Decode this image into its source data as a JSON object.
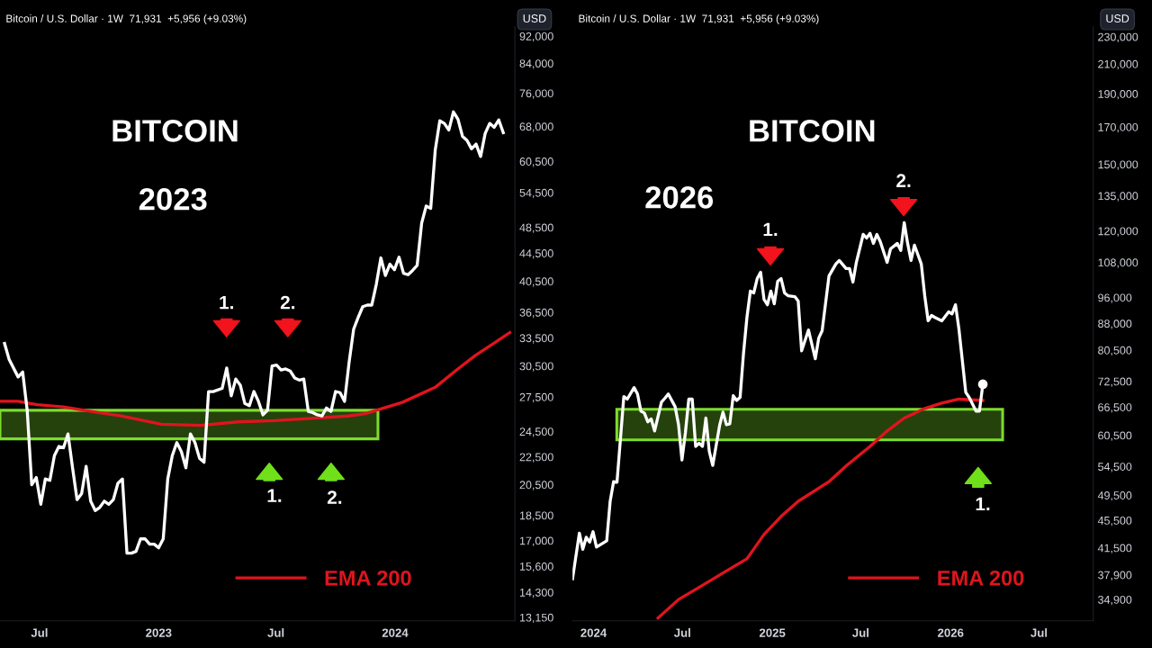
{
  "chart_data": [
    {
      "type": "line",
      "title": "BITCOIN",
      "subtitle": "2023",
      "annotations": [
        "Bitcoin / U.S. Dollar · 1W  71,931  +5,956 (+9.03%)",
        "USD",
        "1.",
        "2.",
        "1.",
        "2."
      ],
      "series": [
        {
          "color": "#ffffff",
          "x": [
            "2022-05-08",
            "2022-05-15",
            "2022-05-29",
            "2022-06-05",
            "2022-06-12",
            "2022-06-19",
            "2022-06-26",
            "2022-07-03",
            "2022-07-10",
            "2022-07-17",
            "2022-07-24",
            "2022-07-31",
            "2022-08-07",
            "2022-08-14",
            "2022-08-21",
            "2022-08-28",
            "2022-09-04",
            "2022-09-11",
            "2022-09-18",
            "2022-09-25",
            "2022-10-02",
            "2022-10-09",
            "2022-10-16",
            "2022-10-23",
            "2022-10-30",
            "2022-11-06",
            "2022-11-13",
            "2022-11-20",
            "2022-11-27",
            "2022-12-04",
            "2022-12-11",
            "2022-12-18",
            "2022-12-25",
            "2023-01-01",
            "2023-01-08",
            "2023-01-15",
            "2023-01-22",
            "2023-01-29",
            "2023-02-05",
            "2023-02-12",
            "2023-02-19",
            "2023-02-26",
            "2023-03-05",
            "2023-03-12",
            "2023-03-19",
            "2023-03-26",
            "2023-04-09",
            "2023-04-16",
            "2023-04-23",
            "2023-04-30",
            "2023-05-07",
            "2023-05-14",
            "2023-05-21",
            "2023-05-28",
            "2023-06-04",
            "2023-06-11",
            "2023-06-18",
            "2023-06-25",
            "2023-07-02",
            "2023-07-09",
            "2023-07-16",
            "2023-07-23",
            "2023-07-30",
            "2023-08-06",
            "2023-08-13",
            "2023-08-20",
            "2023-08-27",
            "2023-09-03",
            "2023-09-10",
            "2023-09-17",
            "2023-09-24",
            "2023-10-01",
            "2023-10-08",
            "2023-10-15",
            "2023-10-22",
            "2023-10-29",
            "2023-11-05",
            "2023-11-12",
            "2023-11-19",
            "2023-11-26",
            "2023-12-03",
            "2023-12-10",
            "2023-12-17",
            "2023-12-24",
            "2023-12-31",
            "2024-01-07",
            "2024-01-14",
            "2024-01-21",
            "2024-01-28",
            "2024-02-04",
            "2024-02-11",
            "2024-02-18",
            "2024-02-25",
            "2024-03-03",
            "2024-03-10",
            "2024-03-17",
            "2024-03-24",
            "2024-03-31",
            "2024-04-07",
            "2024-04-14",
            "2024-04-21",
            "2024-04-28",
            "2024-05-05",
            "2024-05-12",
            "2024-05-19",
            "2024-05-26",
            "2024-06-02",
            "2024-06-09",
            "2024-06-16"
          ],
          "values": [
            32900,
            31200,
            29400,
            29900,
            26300,
            20500,
            21000,
            19200,
            20900,
            20800,
            22600,
            23300,
            23200,
            24300,
            21700,
            19500,
            19900,
            21800,
            19400,
            18800,
            19000,
            19400,
            19200,
            19500,
            20600,
            20900,
            16300,
            16300,
            16400,
            17100,
            17100,
            16800,
            16800,
            16600,
            17100,
            20900,
            22600,
            23600,
            22900,
            21700,
            24300,
            23600,
            22400,
            22100,
            28000,
            28000,
            28300,
            30300,
            27600,
            29200,
            28600,
            26900,
            26700,
            28000,
            27100,
            25900,
            26300,
            30500,
            30600,
            30100,
            30200,
            30000,
            29300,
            29100,
            29200,
            26200,
            26100,
            25900,
            25800,
            26500,
            26200,
            28000,
            27900,
            27100,
            30900,
            34500,
            35900,
            37200,
            37400,
            37400,
            40100,
            43800,
            41300,
            42900,
            42100,
            43900,
            41600,
            41400,
            42000,
            42700,
            49200,
            52100,
            51700,
            62900,
            69300,
            68700,
            67200,
            71400,
            69700,
            65800,
            64900,
            63100,
            64100,
            61500,
            66400,
            68700,
            67800,
            69500,
            66600
          ]
        },
        {
          "name": "EMA 200",
          "color": "#e0141e",
          "x": [
            "2022-05-01",
            "2022-05-29",
            "2022-06-27",
            "2022-08-07",
            "2022-09-19",
            "2022-11-04",
            "2023-01-05",
            "2023-03-07",
            "2023-05-03",
            "2023-06-28",
            "2023-08-24",
            "2023-10-20",
            "2023-11-16",
            "2023-12-03",
            "2024-01-12",
            "2024-03-03",
            "2024-04-05",
            "2024-05-04",
            "2024-06-01",
            "2024-06-26"
          ],
          "values": [
            27100,
            27100,
            26800,
            26600,
            26200,
            25800,
            25100,
            25000,
            25300,
            25400,
            25600,
            25800,
            26000,
            26300,
            27000,
            28400,
            30100,
            31600,
            32900,
            34100
          ]
        }
      ],
      "bands": [
        {
          "axis": "y",
          "from": 23900,
          "to": 26300,
          "color": "#7cdc2c"
        }
      ],
      "log": "y",
      "grid": false,
      "legend": "bottom",
      "line_style": "solid",
      "xlim": [
        "2022-05-01",
        "2024-07-04"
      ],
      "xticks": [
        {
          "value": "2022-07-01",
          "label": "Jul"
        },
        {
          "value": "2023-01-01",
          "label": "2023"
        },
        {
          "value": "2023-07-01",
          "label": "Jul"
        },
        {
          "value": "2024-01-01",
          "label": "2024"
        }
      ],
      "ylim": [
        13000,
        95000
      ],
      "yticks": [
        {
          "value": 13150,
          "label": "13,150"
        },
        {
          "value": 14300,
          "label": "14,300"
        },
        {
          "value": 15600,
          "label": "15,600"
        },
        {
          "value": 17000,
          "label": "17,000"
        },
        {
          "value": 18500,
          "label": "18,500"
        },
        {
          "value": 20500,
          "label": "20,500"
        },
        {
          "value": 22500,
          "label": "22,500"
        },
        {
          "value": 24500,
          "label": "24,500"
        },
        {
          "value": 27500,
          "label": "27,500"
        },
        {
          "value": 30500,
          "label": "30,500"
        },
        {
          "value": 33500,
          "label": "33,500"
        },
        {
          "value": 36500,
          "label": "36,500"
        },
        {
          "value": 40500,
          "label": "40,500"
        },
        {
          "value": 44500,
          "label": "44,500"
        },
        {
          "value": 48500,
          "label": "48,500"
        },
        {
          "value": 54500,
          "label": "54,500"
        },
        {
          "value": 60500,
          "label": "60,500"
        },
        {
          "value": 68000,
          "label": "68,000"
        },
        {
          "value": 76000,
          "label": "76,000"
        },
        {
          "value": 84000,
          "label": "84,000"
        },
        {
          "value": 92000,
          "label": "92,000"
        }
      ]
    },
    {
      "type": "line",
      "title": "BITCOIN",
      "subtitle": "2026",
      "annotations": [
        "Bitcoin / U.S. Dollar · 1W  71,931  +5,956 (+9.03%)",
        "USD",
        "1.",
        "2.",
        "1."
      ],
      "series": [
        {
          "type": "scatter",
          "color": "#ffffff",
          "x": [
            "2026-03-08"
          ],
          "values": [
            71800
          ]
        },
        {
          "color": "#ffffff",
          "x": [
            "2023-11-19",
            "2023-12-03",
            "2023-12-10",
            "2023-12-17",
            "2023-12-24",
            "2023-12-31",
            "2024-01-07",
            "2024-01-28",
            "2024-02-04",
            "2024-02-11",
            "2024-02-18",
            "2024-03-03",
            "2024-03-10",
            "2024-03-24",
            "2024-03-31",
            "2024-04-07",
            "2024-04-14",
            "2024-04-21",
            "2024-04-28",
            "2024-05-05",
            "2024-05-19",
            "2024-05-26",
            "2024-06-02",
            "2024-06-16",
            "2024-06-23",
            "2024-06-30",
            "2024-07-07",
            "2024-07-14",
            "2024-07-21",
            "2024-07-28",
            "2024-08-04",
            "2024-08-11",
            "2024-08-18",
            "2024-08-25",
            "2024-09-01",
            "2024-09-15",
            "2024-09-22",
            "2024-09-29",
            "2024-10-06",
            "2024-10-13",
            "2024-10-20",
            "2024-10-27",
            "2024-11-03",
            "2024-11-10",
            "2024-11-17",
            "2024-11-24",
            "2024-12-01",
            "2024-12-08",
            "2024-12-15",
            "2024-12-22",
            "2024-12-29",
            "2025-01-05",
            "2025-01-12",
            "2025-01-19",
            "2025-01-26",
            "2025-02-02",
            "2025-02-16",
            "2025-02-23",
            "2025-03-02",
            "2025-03-16",
            "2025-03-30",
            "2025-04-06",
            "2025-04-13",
            "2025-04-27",
            "2025-05-11",
            "2025-05-18",
            "2025-06-01",
            "2025-06-08",
            "2025-06-15",
            "2025-06-22",
            "2025-07-06",
            "2025-07-13",
            "2025-07-20",
            "2025-07-27",
            "2025-08-03",
            "2025-08-10",
            "2025-08-24",
            "2025-08-31",
            "2025-09-14",
            "2025-09-21",
            "2025-09-28",
            "2025-10-05",
            "2025-10-12",
            "2025-10-19",
            "2025-11-02",
            "2025-11-09",
            "2025-11-16",
            "2025-11-23",
            "2025-11-30",
            "2025-12-14",
            "2025-12-28",
            "2026-01-04",
            "2026-01-11",
            "2026-01-18",
            "2026-02-01",
            "2026-02-08",
            "2026-02-22",
            "2026-03-01",
            "2026-03-08"
          ],
          "values": [
            37400,
            43600,
            41300,
            43000,
            42300,
            43800,
            41600,
            42500,
            48500,
            51800,
            51700,
            68900,
            68300,
            71000,
            69500,
            65600,
            65200,
            63300,
            63900,
            61400,
            67600,
            68500,
            69500,
            66600,
            62700,
            55700,
            61000,
            68300,
            68300,
            58300,
            58900,
            58300,
            64100,
            57300,
            54700,
            62500,
            65400,
            62700,
            62900,
            69100,
            68000,
            68700,
            79600,
            89800,
            98100,
            97500,
            102300,
            104500,
            95400,
            93700,
            98100,
            94000,
            101400,
            102300,
            97500,
            96600,
            96300,
            94900,
            80300,
            86100,
            78200,
            83800,
            85900,
            103200,
            107400,
            108700,
            105800,
            105800,
            101100,
            108000,
            118600,
            117200,
            119000,
            115100,
            118600,
            115800,
            108000,
            113000,
            115100,
            112400,
            123400,
            115100,
            108700,
            114400,
            107400,
            96600,
            88800,
            90400,
            89800,
            88800,
            91500,
            90900,
            93700,
            86400,
            69900,
            68700,
            65600,
            65600,
            71800
          ]
        },
        {
          "name": "EMA 200",
          "color": "#e0141e",
          "x": [
            "2024-05-12",
            "2024-06-23",
            "2024-08-11",
            "2024-09-29",
            "2024-11-10",
            "2024-12-15",
            "2025-01-19",
            "2025-02-23",
            "2025-04-27",
            "2025-06-01",
            "2025-07-20",
            "2025-08-24",
            "2025-09-28",
            "2025-11-09",
            "2025-12-14",
            "2026-01-18",
            "2026-03-08"
          ],
          "values": [
            32800,
            34900,
            36600,
            38400,
            40000,
            43400,
            46100,
            48500,
            51800,
            54600,
            58300,
            61400,
            64100,
            66200,
            67400,
            68300,
            68000
          ]
        }
      ],
      "bands": [
        {
          "axis": "y",
          "from": 59600,
          "to": 66000,
          "color": "#7cdc2c"
        }
      ],
      "log": "y",
      "grid": false,
      "legend": "bottom",
      "line_style": "solid",
      "xlim": [
        "2023-11-19",
        "2026-10-20"
      ],
      "xticks": [
        {
          "value": "2024-01-01",
          "label": "2024"
        },
        {
          "value": "2024-07-01",
          "label": "Jul"
        },
        {
          "value": "2025-01-01",
          "label": "2025"
        },
        {
          "value": "2025-07-01",
          "label": "Jul"
        },
        {
          "value": "2026-01-01",
          "label": "2026"
        },
        {
          "value": "2026-07-01",
          "label": "Jul"
        }
      ],
      "ylim": [
        32500,
        238000
      ],
      "yticks": [
        {
          "value": 34900,
          "label": "34,900"
        },
        {
          "value": 37900,
          "label": "37,900"
        },
        {
          "value": 41500,
          "label": "41,500"
        },
        {
          "value": 45500,
          "label": "45,500"
        },
        {
          "value": 49500,
          "label": "49,500"
        },
        {
          "value": 54500,
          "label": "54,500"
        },
        {
          "value": 60500,
          "label": "60,500"
        },
        {
          "value": 66500,
          "label": "66,500"
        },
        {
          "value": 72500,
          "label": "72,500"
        },
        {
          "value": 80500,
          "label": "80,500"
        },
        {
          "value": 88000,
          "label": "88,000"
        },
        {
          "value": 96000,
          "label": "96,000"
        },
        {
          "value": 108000,
          "label": "108,000"
        },
        {
          "value": 120000,
          "label": "120,000"
        },
        {
          "value": 135000,
          "label": "135,000"
        },
        {
          "value": 150000,
          "label": "150,000"
        },
        {
          "value": 170000,
          "label": "170,000"
        },
        {
          "value": 190000,
          "label": "190,000"
        },
        {
          "value": 210000,
          "label": "210,000"
        },
        {
          "value": 230000,
          "label": "230,000"
        }
      ]
    }
  ]
}
